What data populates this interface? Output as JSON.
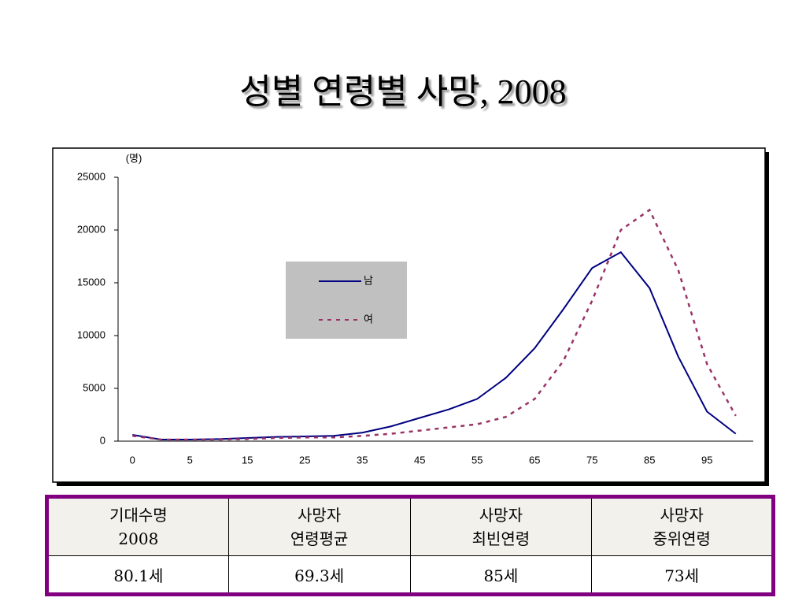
{
  "title": "성별 연령별 사망, 2008",
  "chart_data": {
    "type": "line",
    "ylabel": "(명)",
    "categories": [
      "0",
      null,
      "5",
      null,
      "15",
      null,
      "25",
      null,
      "35",
      null,
      "45",
      null,
      "55",
      null,
      "65",
      null,
      "75",
      null,
      "85",
      null,
      "95",
      null
    ],
    "series": [
      {
        "name": "남",
        "color": "#000080",
        "dash": false,
        "values": [
          600,
          150,
          150,
          200,
          300,
          400,
          450,
          500,
          800,
          1400,
          2200,
          3000,
          4000,
          6000,
          8800,
          12500,
          16400,
          17900,
          14500,
          8000,
          2800,
          700
        ]
      },
      {
        "name": "여",
        "color": "#993366",
        "dash": true,
        "values": [
          500,
          150,
          150,
          150,
          200,
          300,
          350,
          350,
          500,
          700,
          1000,
          1300,
          1600,
          2300,
          4000,
          7600,
          13300,
          20000,
          21900,
          16200,
          7300,
          2400
        ]
      }
    ],
    "ylim": [
      0,
      25000
    ],
    "yticks": [
      0,
      5000,
      10000,
      15000,
      20000,
      25000
    ],
    "grid": false
  },
  "table": {
    "header": [
      [
        "기대수명",
        "2008"
      ],
      [
        "사망자",
        "연령평균"
      ],
      [
        "사망자",
        "최빈연령"
      ],
      [
        "사망자",
        "중위연령"
      ]
    ],
    "rows": [
      [
        "80.1세",
        "69.3세",
        "85세",
        "73세"
      ]
    ]
  }
}
